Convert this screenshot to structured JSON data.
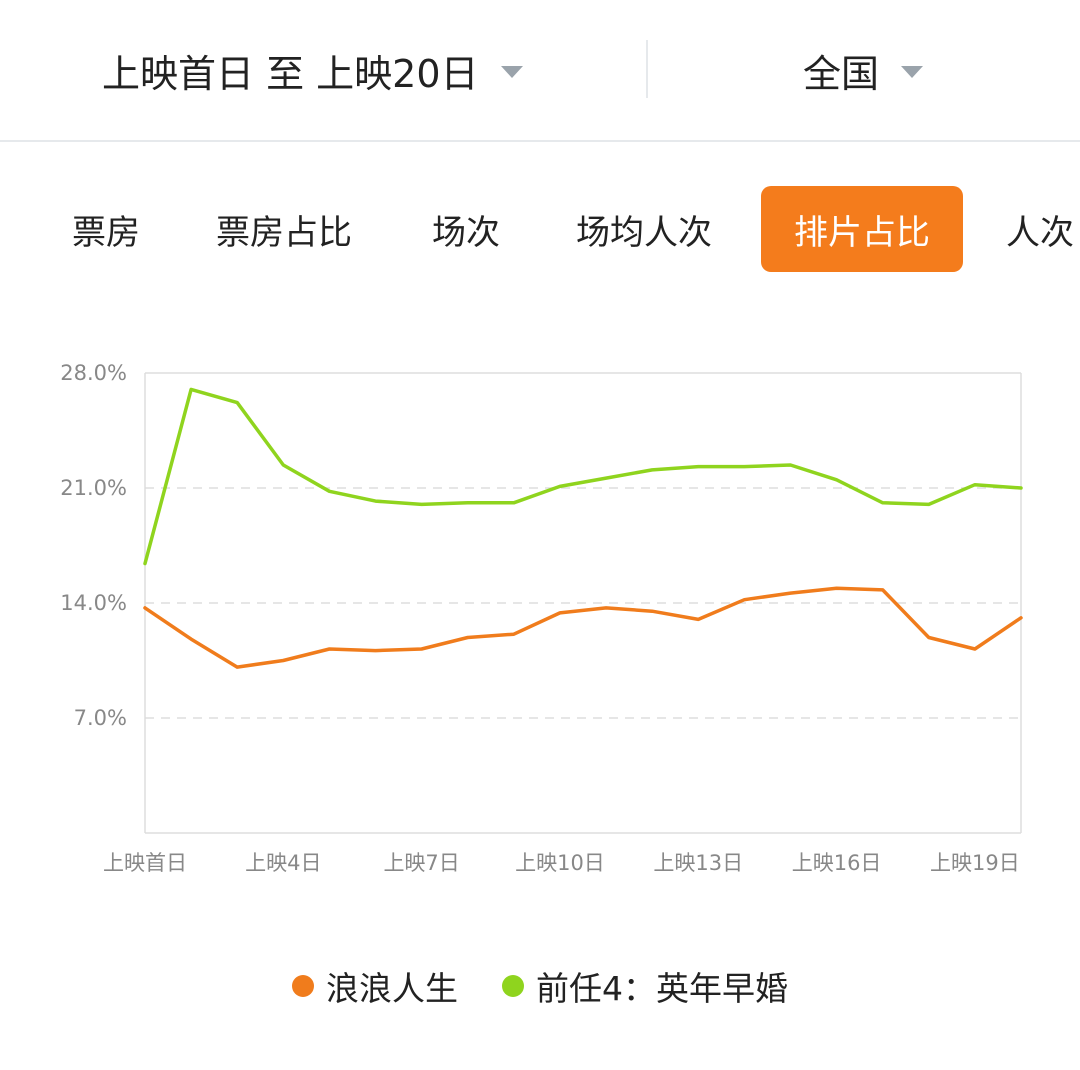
{
  "filters": {
    "date_range": "上映首日 至 上映20日",
    "region": "全国"
  },
  "tabs": [
    {
      "label": "票房",
      "active": false
    },
    {
      "label": "票房占比",
      "active": false
    },
    {
      "label": "场次",
      "active": false
    },
    {
      "label": "场均人次",
      "active": false
    },
    {
      "label": "排片占比",
      "active": true
    },
    {
      "label": "人次",
      "active": false
    }
  ],
  "colors": {
    "accent": "#f47c1c",
    "series_orange": "#f07c1c",
    "series_green": "#8fd41e",
    "grid": "#dddddd",
    "axis_text": "#888888"
  },
  "chart_data": {
    "type": "line",
    "x": [
      "上映首日",
      "上映2日",
      "上映3日",
      "上映4日",
      "上映5日",
      "上映6日",
      "上映7日",
      "上映8日",
      "上映9日",
      "上映10日",
      "上映11日",
      "上映12日",
      "上映13日",
      "上映14日",
      "上映15日",
      "上映16日",
      "上映17日",
      "上映18日",
      "上映19日",
      "上映20日"
    ],
    "xtick_labels": [
      "上映首日",
      "上映4日",
      "上映7日",
      "上映10日",
      "上映13日",
      "上映16日",
      "上映19日"
    ],
    "xtick_indices": [
      0,
      3,
      6,
      9,
      12,
      15,
      18
    ],
    "yticks": [
      7.0,
      14.0,
      21.0,
      28.0
    ],
    "ytick_labels": [
      "7.0%",
      "14.0%",
      "21.0%",
      "28.0%"
    ],
    "ylim": [
      0,
      28
    ],
    "grid": true,
    "legend_position": "bottom-center",
    "series": [
      {
        "name": "浪浪人生",
        "color": "#f07c1c",
        "values": [
          13.7,
          11.8,
          10.1,
          10.5,
          11.2,
          11.1,
          11.2,
          11.9,
          12.1,
          13.4,
          13.7,
          13.5,
          13.0,
          14.2,
          14.6,
          14.9,
          14.8,
          11.9,
          11.2,
          13.1
        ]
      },
      {
        "name": "前任4：英年早婚",
        "color": "#8fd41e",
        "values": [
          16.4,
          27.0,
          26.2,
          22.4,
          20.8,
          20.2,
          20.0,
          20.1,
          20.1,
          21.1,
          21.6,
          22.1,
          22.3,
          22.3,
          22.4,
          21.5,
          20.1,
          20.0,
          21.2,
          21.0
        ]
      }
    ]
  }
}
